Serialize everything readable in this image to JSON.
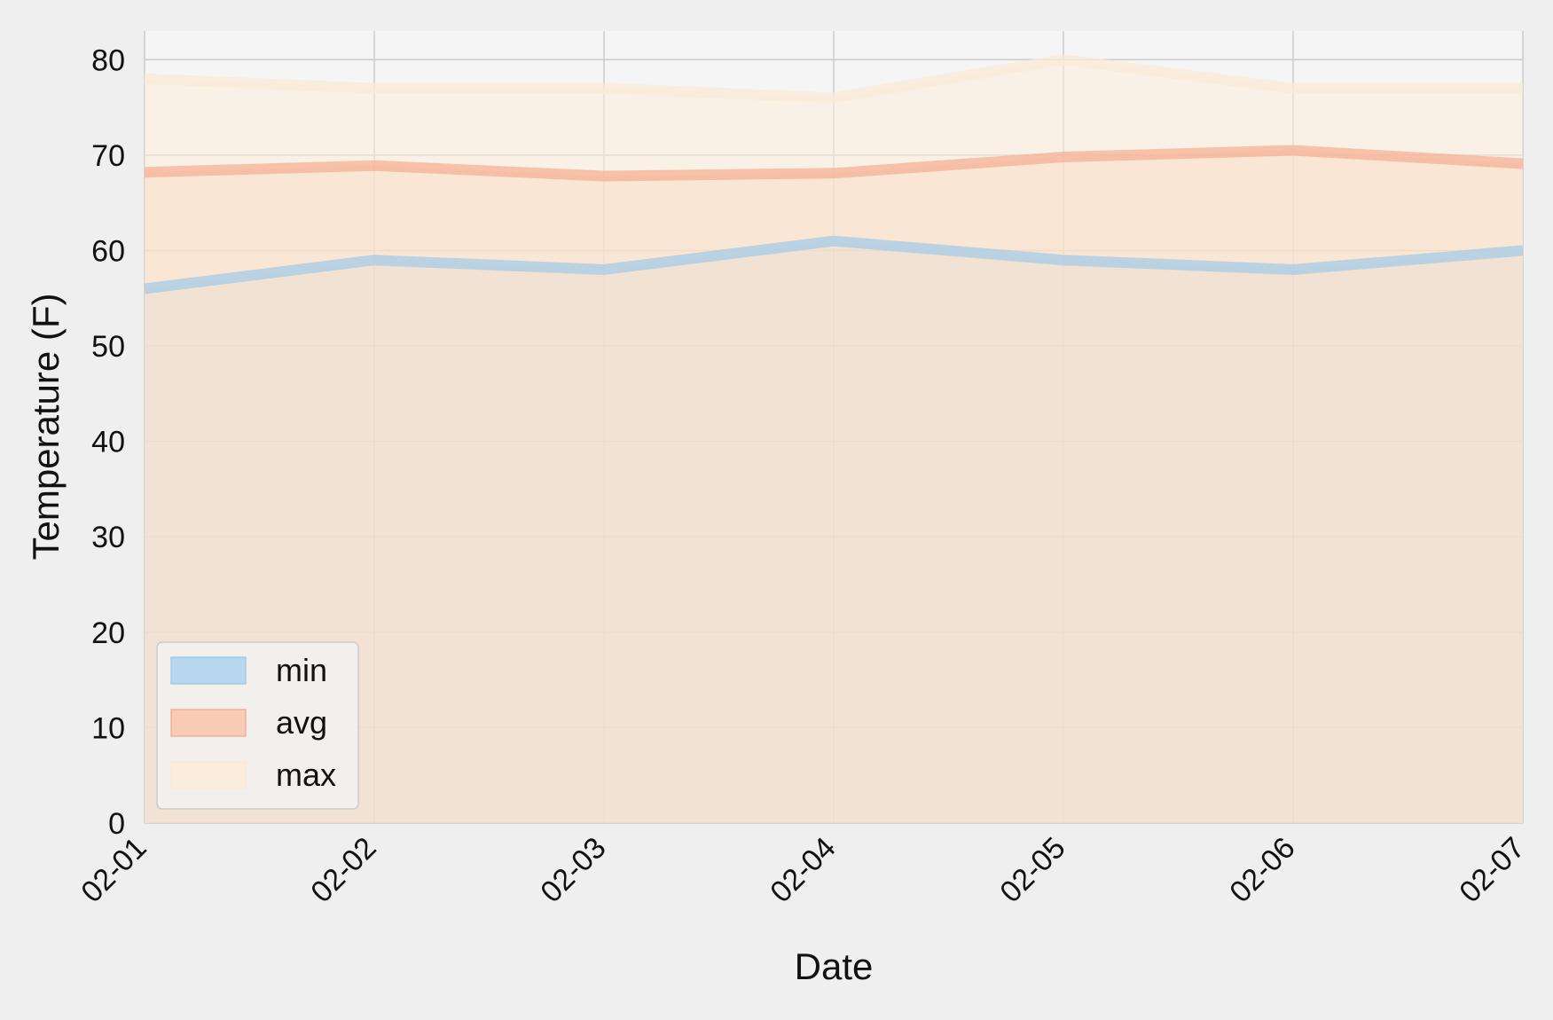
{
  "chart_data": {
    "type": "area",
    "title": "",
    "xlabel": "Date",
    "ylabel": "Temperature (F)",
    "categories": [
      "02-01",
      "02-02",
      "02-03",
      "02-04",
      "02-05",
      "02-06",
      "02-07"
    ],
    "ylim": [
      0,
      83
    ],
    "yticks": [
      0,
      10,
      20,
      30,
      40,
      50,
      60,
      70,
      80
    ],
    "grid": true,
    "legend_position": "lower-left",
    "series": [
      {
        "name": "min",
        "values": [
          56,
          59,
          58,
          61,
          59,
          58,
          60
        ],
        "fill": "#b0d4ee",
        "line": "#a6cbe6"
      },
      {
        "name": "avg",
        "values": [
          68.2,
          68.9,
          67.8,
          68.1,
          69.8,
          70.5,
          69.1
        ],
        "fill": "#f8c7ae",
        "line": "#f6b096"
      },
      {
        "name": "max",
        "values": [
          78,
          77,
          77,
          76,
          80,
          77,
          77
        ],
        "fill": "#fbecd9",
        "line": "#faead6"
      }
    ]
  }
}
